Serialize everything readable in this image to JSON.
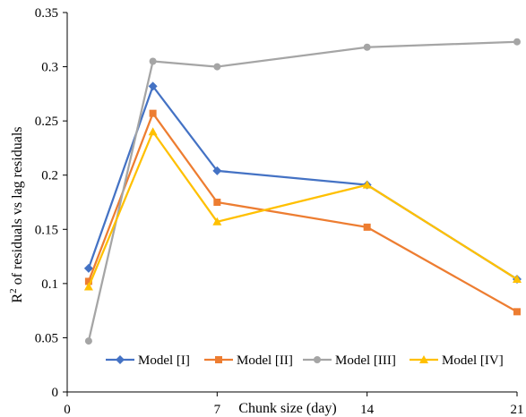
{
  "chart_data": {
    "type": "line",
    "title": "",
    "xlabel": "Chunk size (day)",
    "ylabel_main": "R",
    "ylabel_sup": "2",
    "ylabel_rest": " of residuals vs lag residuals",
    "xlim": [
      0,
      21
    ],
    "ylim": [
      0,
      0.35
    ],
    "xticks": [
      0,
      7,
      14,
      21
    ],
    "xtick_labels": [
      "0",
      "7",
      "14",
      "21"
    ],
    "yticks": [
      0,
      0.05,
      0.1,
      0.15,
      0.2,
      0.25,
      0.3,
      0.35
    ],
    "ytick_labels": [
      "0",
      "0.05",
      "0.1",
      "0.15",
      "0.2",
      "0.25",
      "0.3",
      "0.35"
    ],
    "grid": false,
    "legend_position": "bottom-inside",
    "x": [
      1,
      4,
      7,
      14,
      21
    ],
    "series": [
      {
        "name": "Model [I]",
        "color": "#4472C4",
        "marker": "diamond",
        "values": [
          0.114,
          0.282,
          0.204,
          0.191,
          0.104
        ]
      },
      {
        "name": "Model [II]",
        "color": "#ED7D31",
        "marker": "square",
        "values": [
          0.102,
          0.257,
          0.175,
          0.152,
          0.074
        ]
      },
      {
        "name": "Model [III]",
        "color": "#A5A5A5",
        "marker": "circle",
        "values": [
          0.047,
          0.305,
          0.3,
          0.318,
          0.323
        ]
      },
      {
        "name": "Model [IV]",
        "color": "#FFC000",
        "marker": "triangle",
        "values": [
          0.097,
          0.24,
          0.157,
          0.191,
          0.104
        ]
      }
    ]
  }
}
